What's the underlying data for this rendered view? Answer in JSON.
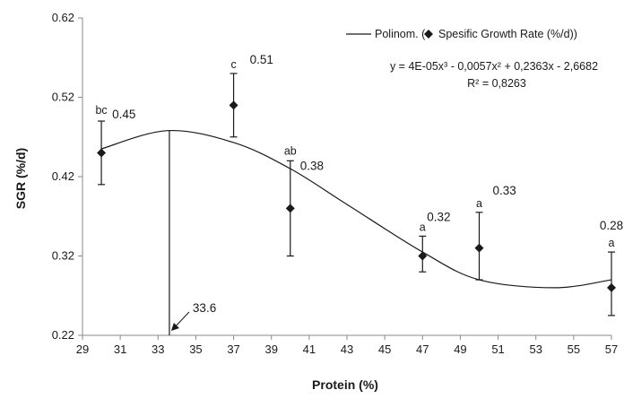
{
  "chart_data": {
    "type": "scatter",
    "xlabel": "Protein (%)",
    "ylabel": "SGR (%/d)",
    "xlim": [
      29,
      57
    ],
    "ylim": [
      0.22,
      0.62
    ],
    "x_ticks": [
      "29",
      "31",
      "33",
      "35",
      "37",
      "39",
      "41",
      "43",
      "45",
      "47",
      "49",
      "51",
      "53",
      "55",
      "57"
    ],
    "y_ticks": [
      "0.22",
      "0.32",
      "0.42",
      "0.52",
      "0.62"
    ],
    "grid": false,
    "legend": {
      "placement": "top-right",
      "line_label": "Polinom. (",
      "marker_label": "Spesific Growth Rate (%/d))"
    },
    "equation": "y = 4E-05x³ - 0,0057x² + 0,2363x - 2,6682",
    "r_squared": "R² = 0,8263",
    "series": [
      {
        "name": "Spesific Growth Rate (%/d)",
        "points": [
          {
            "x": 30,
            "y": 0.45,
            "err_low": 0.41,
            "err_high": 0.49,
            "letter": "bc",
            "value_label": "0.45"
          },
          {
            "x": 37,
            "y": 0.51,
            "err_low": 0.47,
            "err_high": 0.55,
            "letter": "c",
            "value_label": "0.51"
          },
          {
            "x": 40,
            "y": 0.38,
            "err_low": 0.32,
            "err_high": 0.44,
            "letter": "ab",
            "value_label": "0.38"
          },
          {
            "x": 47,
            "y": 0.32,
            "err_low": 0.3,
            "err_high": 0.345,
            "letter": "a",
            "value_label": "0.32"
          },
          {
            "x": 50,
            "y": 0.33,
            "err_low": 0.29,
            "err_high": 0.375,
            "letter": "a",
            "value_label": "0.33"
          },
          {
            "x": 57,
            "y": 0.28,
            "err_low": 0.245,
            "err_high": 0.325,
            "letter": "a",
            "value_label": "0.28"
          }
        ]
      }
    ],
    "trendline": {
      "name": "Polinom.",
      "type": "polynomial-3",
      "x_from": 30,
      "x_to": 57,
      "y_at_x": [
        [
          30,
          0.455
        ],
        [
          33.5,
          0.478
        ],
        [
          37,
          0.463
        ],
        [
          40,
          0.43
        ],
        [
          43,
          0.385
        ],
        [
          47,
          0.325
        ],
        [
          50,
          0.29
        ],
        [
          54,
          0.28
        ],
        [
          57,
          0.29
        ]
      ]
    },
    "annotation": {
      "label": "33.6",
      "x": 33.6
    }
  }
}
